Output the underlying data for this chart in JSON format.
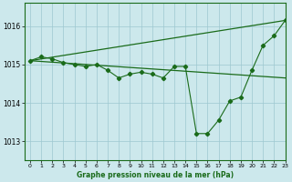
{
  "title": "Graphe pression niveau de la mer (hPa)",
  "background_color": "#cce8ec",
  "grid_color": "#9ec8d0",
  "line_color": "#1a6b1a",
  "xlim": [
    -0.5,
    23
  ],
  "ylim": [
    1012.5,
    1016.6
  ],
  "yticks": [
    1013,
    1014,
    1015,
    1016
  ],
  "xticks": [
    0,
    1,
    2,
    3,
    4,
    5,
    6,
    7,
    8,
    9,
    10,
    11,
    12,
    13,
    14,
    15,
    16,
    17,
    18,
    19,
    20,
    21,
    22,
    23
  ],
  "straight_line1": [
    [
      0,
      1015.1
    ],
    [
      23,
      1016.15
    ]
  ],
  "straight_line2": [
    [
      0,
      1015.1
    ],
    [
      23,
      1014.65
    ]
  ],
  "zigzag_x": [
    0,
    1,
    2,
    3,
    4,
    5,
    6,
    7,
    8,
    9,
    10,
    11,
    12,
    13,
    14,
    15,
    16,
    17,
    18,
    19,
    20,
    21,
    22,
    23
  ],
  "zigzag_y": [
    1015.1,
    1015.2,
    1015.15,
    1015.05,
    1015.0,
    1014.95,
    1015.0,
    1014.85,
    1014.65,
    1014.75,
    1014.8,
    1014.75,
    1014.65,
    1014.95,
    1014.95,
    1013.2,
    1013.2,
    1013.55,
    1014.05,
    1014.15,
    1014.85,
    1015.5,
    1015.75,
    1016.15
  ]
}
